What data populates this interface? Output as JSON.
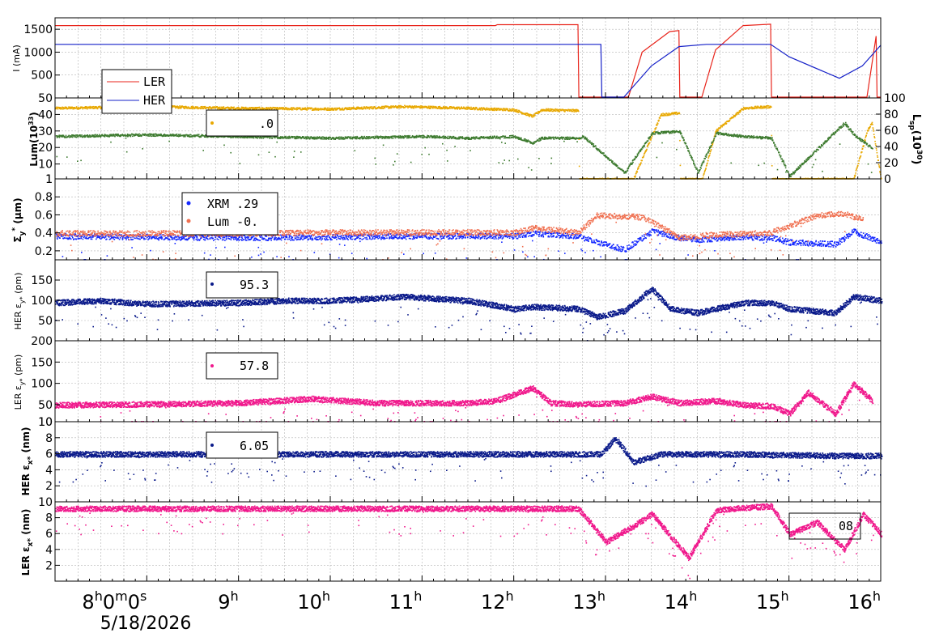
{
  "chart_data": [
    {
      "type": "line",
      "panel": "current",
      "ylabel": "I (mA)",
      "yticks": [
        "500",
        "1000",
        "1500"
      ],
      "ylim": [
        0,
        1750
      ],
      "legend": {
        "placement": "lower-left",
        "entries": [
          "LER",
          "HER"
        ]
      },
      "series": [
        {
          "name": "LER",
          "color": "#e8251c",
          "unit": "mA",
          "x": [
            7.0,
            11.8,
            11.82,
            12.7,
            12.71,
            12.72,
            12.8,
            13.25,
            13.4,
            13.7,
            13.8,
            13.81,
            14.05,
            14.2,
            14.5,
            14.8,
            14.81,
            15.85,
            15.95,
            15.96,
            16.0
          ],
          "y": [
            1580,
            1580,
            1600,
            1600,
            0,
            0,
            0,
            0,
            1000,
            1450,
            1470,
            0,
            0,
            1050,
            1580,
            1610,
            0,
            0,
            1350,
            0,
            0
          ]
        },
        {
          "name": "HER",
          "color": "#1520c8",
          "unit": "mA",
          "x": [
            7.0,
            12.7,
            12.95,
            12.96,
            13.1,
            13.2,
            13.5,
            13.8,
            14.1,
            14.8,
            15.0,
            15.55,
            15.8,
            16.0
          ],
          "y": [
            1170,
            1170,
            1170,
            0,
            0,
            0,
            700,
            1120,
            1170,
            1170,
            900,
            430,
            700,
            1150
          ]
        }
      ]
    },
    {
      "type": "line",
      "panel": "luminosity",
      "ylabel": "Lum(10^33)",
      "y2label": "Lsp(10^30)",
      "yticks": [
        "1",
        "10",
        "20",
        "30",
        "40",
        "50"
      ],
      "y2ticks": [
        "0",
        "20",
        "40",
        "60",
        "80",
        "100"
      ],
      "ylim": [
        1,
        50
      ],
      "y2lim": [
        0,
        100
      ],
      "legend": {
        "placement": "top-center",
        "value_text": ".0"
      },
      "series": [
        {
          "name": "Lsp",
          "axis": "right",
          "color": "#e8a800",
          "x": [
            7.0,
            8.0,
            9.0,
            10.0,
            10.8,
            11.5,
            12.0,
            12.2,
            12.3,
            12.7,
            12.71,
            13.3,
            13.6,
            13.8,
            13.81,
            14.05,
            14.2,
            14.5,
            14.8,
            14.81,
            15.7,
            15.85,
            15.9,
            16.0
          ],
          "y": [
            88,
            90,
            88,
            87,
            90,
            88,
            86,
            78,
            86,
            85,
            0,
            0,
            80,
            82,
            0,
            0,
            60,
            88,
            90,
            0,
            0,
            60,
            70,
            0
          ]
        },
        {
          "name": "Lum",
          "axis": "left",
          "color": "#3c7a2e",
          "x": [
            7.0,
            8.0,
            9.0,
            10.0,
            11.0,
            11.5,
            12.0,
            12.2,
            12.3,
            12.7,
            12.75,
            13.2,
            13.5,
            13.8,
            14.0,
            14.2,
            14.5,
            14.8,
            15.0,
            15.5,
            15.6,
            15.7,
            15.9
          ],
          "y": [
            27,
            28,
            27,
            26,
            27,
            26,
            27,
            23,
            26,
            26,
            27,
            5,
            29,
            30,
            5,
            29,
            27,
            26,
            3,
            30,
            35,
            28,
            20
          ]
        }
      ]
    },
    {
      "type": "scatter",
      "panel": "sigma_y",
      "ylabel": "Σy* (μm)",
      "yticks": [
        "0.2",
        "0.4",
        "0.6",
        "0.8",
        "1"
      ],
      "ylim": [
        0.1,
        1.0
      ],
      "legend": {
        "placement": "top-center",
        "entries": [
          "XRM  .29",
          "Lum -0."
        ]
      },
      "series": [
        {
          "name": "XRM",
          "color": "#1428ff",
          "x": [
            7.0,
            8.0,
            9.0,
            10.0,
            11.0,
            12.0,
            12.2,
            12.7,
            12.9,
            13.2,
            13.5,
            13.8,
            14.0,
            14.5,
            14.8,
            15.0,
            15.5,
            15.7,
            16.0
          ],
          "y": [
            0.37,
            0.36,
            0.35,
            0.36,
            0.37,
            0.37,
            0.4,
            0.37,
            0.3,
            0.22,
            0.42,
            0.35,
            0.33,
            0.36,
            0.35,
            0.3,
            0.28,
            0.42,
            0.3
          ]
        },
        {
          "name": "Lum",
          "color": "#f07050",
          "x": [
            7.0,
            8.0,
            9.0,
            10.0,
            11.0,
            12.0,
            12.2,
            12.7,
            12.9,
            13.4,
            13.8,
            14.1,
            14.8,
            15.3,
            15.6,
            15.8
          ],
          "y": [
            0.4,
            0.4,
            0.4,
            0.41,
            0.41,
            0.41,
            0.46,
            0.41,
            0.6,
            0.58,
            0.35,
            0.38,
            0.41,
            0.6,
            0.62,
            0.55
          ]
        }
      ]
    },
    {
      "type": "scatter",
      "panel": "her_eps_y",
      "ylabel": "HER εy* (pm)",
      "yticks": [
        "50",
        "100",
        "150"
      ],
      "ylim": [
        0,
        200
      ],
      "legend": {
        "placement": "top-center",
        "value_text": "95.3"
      },
      "series": [
        {
          "name": "HER εy*",
          "color": "#0a1a8a",
          "x": [
            7.0,
            7.5,
            8.0,
            9.0,
            9.5,
            10.0,
            10.8,
            11.5,
            12.0,
            12.2,
            12.7,
            12.9,
            13.2,
            13.5,
            13.7,
            14.0,
            14.5,
            14.8,
            15.0,
            15.5,
            15.7,
            16.0
          ],
          "y": [
            95,
            100,
            92,
            95,
            100,
            100,
            110,
            100,
            80,
            85,
            80,
            60,
            75,
            130,
            80,
            70,
            95,
            95,
            80,
            70,
            110,
            100
          ]
        }
      ]
    },
    {
      "type": "scatter",
      "panel": "ler_eps_y",
      "ylabel": "LER εy* (pm)",
      "yticks": [
        "10",
        "50",
        "100",
        "150",
        "200"
      ],
      "ylim": [
        10,
        200
      ],
      "legend": {
        "placement": "top-center",
        "value_text": "57.8"
      },
      "series": [
        {
          "name": "LER εy*",
          "color": "#f0188c",
          "x": [
            7.0,
            8.0,
            9.0,
            9.8,
            10.5,
            11.5,
            11.8,
            12.2,
            12.4,
            12.7,
            13.2,
            13.5,
            13.8,
            14.2,
            14.5,
            14.8,
            15.0,
            15.2,
            15.5,
            15.7,
            15.9
          ],
          "y": [
            50,
            52,
            55,
            65,
            55,
            55,
            60,
            90,
            55,
            52,
            55,
            70,
            55,
            60,
            50,
            48,
            30,
            80,
            30,
            100,
            60
          ]
        }
      ]
    },
    {
      "type": "scatter",
      "panel": "her_eps_x",
      "ylabel": "HER εx* (nm)",
      "yticks": [
        "2",
        "4",
        "6",
        "8",
        "10"
      ],
      "ylim": [
        0,
        10
      ],
      "legend": {
        "placement": "top-center",
        "value_text": "6.05"
      },
      "series": [
        {
          "name": "HER εx*",
          "color": "#0a1a8a",
          "x": [
            7.0,
            8.0,
            9.0,
            10.0,
            11.0,
            12.0,
            12.7,
            12.95,
            13.1,
            13.3,
            13.6,
            14.0,
            14.5,
            15.0,
            15.5,
            16.0
          ],
          "y": [
            6.0,
            6.0,
            6.0,
            6.0,
            6.0,
            6.0,
            6.0,
            6.0,
            8.0,
            5.0,
            6.0,
            6.0,
            6.0,
            5.9,
            5.8,
            5.8
          ]
        }
      ]
    },
    {
      "type": "scatter",
      "panel": "ler_eps_x",
      "ylabel": "LER εx* (nm)",
      "yticks": [
        "2",
        "4",
        "6",
        "8",
        "10"
      ],
      "ylim": [
        0,
        10
      ],
      "legend": {
        "placement": "right",
        "value_text": "08"
      },
      "series": [
        {
          "name": "LER εx*",
          "color": "#f0188c",
          "x": [
            7.0,
            8.0,
            9.0,
            10.0,
            11.0,
            12.0,
            12.7,
            13.0,
            13.3,
            13.5,
            13.9,
            14.2,
            14.5,
            14.8,
            15.0,
            15.3,
            15.6,
            15.8,
            16.0
          ],
          "y": [
            9.2,
            9.2,
            9.2,
            9.2,
            9.2,
            9.2,
            9.2,
            5.0,
            7.0,
            8.5,
            3.0,
            9.0,
            9.3,
            9.5,
            6.0,
            7.5,
            4.0,
            8.5,
            6.0
          ]
        }
      ]
    }
  ],
  "xaxis": {
    "range_hours": [
      7.0,
      16.0
    ],
    "tick_labels": [
      {
        "base": "8",
        "sup": "h",
        "base2": "0",
        "sup2": "m",
        "base3": "0",
        "sup3": "s",
        "at": 8
      },
      {
        "base": "9",
        "sup": "h",
        "at": 9
      },
      {
        "base": "10",
        "sup": "h",
        "at": 10
      },
      {
        "base": "11",
        "sup": "h",
        "at": 11
      },
      {
        "base": "12",
        "sup": "h",
        "at": 12
      },
      {
        "base": "13",
        "sup": "h",
        "at": 13
      },
      {
        "base": "14",
        "sup": "h",
        "at": 14
      },
      {
        "base": "15",
        "sup": "h",
        "at": 15
      },
      {
        "base": "16",
        "sup": "h",
        "at": 16
      }
    ],
    "date": "5/18/2026"
  },
  "labels": {
    "current_ylabel": "I (mA)",
    "lum_ylabel_main": "Lum(10",
    "lum_ylabel_sup": "33",
    "lum_ylabel_end": ")",
    "lsp_ylabel_main": "L",
    "lsp_ylabel_sub": "sp",
    "lsp_ylabel_mid": "(10",
    "lsp_ylabel_sup": "30",
    "lsp_ylabel_end": ")",
    "sigma_main": "Σ",
    "sigma_sub": "y",
    "sigma_sup": "*",
    "sigma_unit": " (μm)",
    "hery_main": "HER ε",
    "hery_sub": "y*",
    "hery_unit": " (pm)",
    "lery_main": "LER ε",
    "lery_sub": "y*",
    "lery_unit": " (pm)",
    "herx_main": "HER ε",
    "herx_sub": "x*",
    "herx_unit": " (nm)",
    "lerx_main": "LER ε",
    "lerx_sub": "x*",
    "lerx_unit": " (nm)",
    "legend_ler": "LER",
    "legend_her": "HER",
    "legend_lum": ".0",
    "legend_xrm": "XRM  .29",
    "legend_lumsig": "Lum -0.",
    "legend_hery": "95.3",
    "legend_lery": "57.8",
    "legend_herx": "6.05",
    "legend_lerx": "08"
  }
}
